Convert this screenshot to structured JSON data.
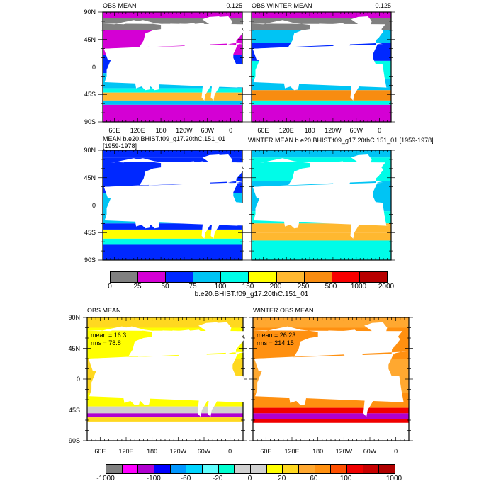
{
  "lat_labels": [
    "90N",
    "45N",
    "0",
    "45S",
    "90S"
  ],
  "lon_labels": [
    "60E",
    "120E",
    "180",
    "120W",
    "60W",
    "0"
  ],
  "panels": {
    "top_left": {
      "title": "OBS MEAN",
      "right_label": "0.125"
    },
    "top_right": {
      "title": "OBS WINTER MEAN",
      "right_label": "0.125"
    },
    "mid_left": {
      "title": "MEAN b.e20.BHIST.f09_g17.20thC.151_01 [1959-1978]"
    },
    "mid_right": {
      "title": "WINTER MEAN b.e20.BHIST.f09_g17.20thC.151_01 [1959-1978]"
    },
    "bot_left": {
      "title": "OBS MEAN",
      "mean": "mean = 16.3",
      "rms": "rms = 78.8"
    },
    "bot_right": {
      "title": "WINTER OBS MEAN",
      "mean": "mean = 26.23",
      "rms": "rms = 214.15"
    }
  },
  "colorbar1": {
    "title": "b.e20.BHIST.f09_g17.20thC.151_01",
    "labels": [
      "0",
      "25",
      "50",
      "75",
      "100",
      "150",
      "200",
      "250",
      "500",
      "1000",
      "2000"
    ],
    "colors": [
      "#808080",
      "#d400d4",
      "#0028ff",
      "#00c4f4",
      "#00fce8",
      "#ffff00",
      "#ffb830",
      "#f88c10",
      "#f80000",
      "#b80000"
    ]
  },
  "colorbar2": {
    "labels": [
      "-1000",
      "-100",
      "-60",
      "-20",
      "0",
      "20",
      "60",
      "100",
      "1000"
    ],
    "colors": [
      "#808080",
      "#ff00ff",
      "#b000d0",
      "#0000ff",
      "#0096ff",
      "#00d4ff",
      "#60ffff",
      "#00ffd0",
      "#d0d0d0",
      "#d0d0d0",
      "#ffff00",
      "#ffd820",
      "#ffa830",
      "#ff9010",
      "#ff5000",
      "#f00000",
      "#c80000",
      "#b00000"
    ]
  }
}
